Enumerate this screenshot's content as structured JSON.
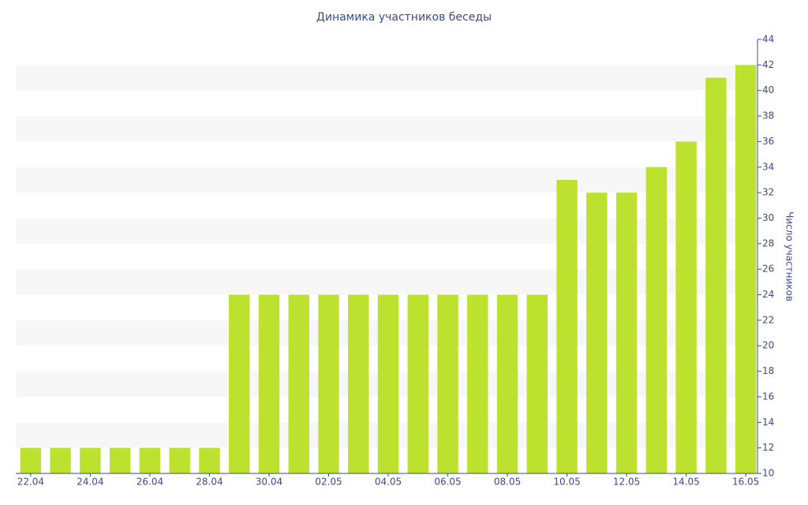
{
  "chart_data": {
    "type": "bar",
    "title": "Динамика участников беседы",
    "y_axis_label": "Число участников",
    "categories": [
      "22.04",
      null,
      "24.04",
      null,
      "26.04",
      null,
      "28.04",
      null,
      "30.04",
      null,
      "02.05",
      null,
      "04.05",
      null,
      "06.05",
      null,
      "08.05",
      null,
      "10.05",
      null,
      "12.05",
      null,
      "14.05",
      null,
      "16.05"
    ],
    "values": [
      12,
      12,
      12,
      12,
      12,
      12,
      12,
      24,
      24,
      24,
      24,
      24,
      24,
      24,
      24,
      24,
      24,
      24,
      33,
      32,
      32,
      34,
      36,
      41,
      42
    ],
    "color": "#bce22f",
    "ylim": [
      10,
      44
    ],
    "yticks": [
      10,
      12,
      14,
      16,
      18,
      20,
      22,
      24,
      26,
      28,
      30,
      32,
      34,
      36,
      38,
      40,
      42,
      44
    ],
    "grid": "bands",
    "y_axis_side": "right"
  }
}
